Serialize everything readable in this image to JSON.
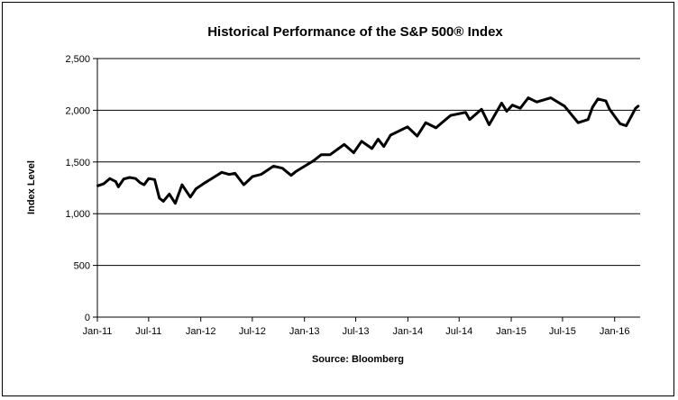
{
  "chart_data": {
    "type": "line",
    "title": "Historical Performance of the S&P 500® Index",
    "xlabel": "Source: Bloomberg",
    "ylabel": "Index Level",
    "ylim": [
      0,
      2500
    ],
    "yticks": [
      0,
      500,
      1000,
      1500,
      2000,
      2500
    ],
    "ytick_labels": [
      "0",
      "500",
      "1,000",
      "1,500",
      "2,000",
      "2,500"
    ],
    "xlim": [
      "2011-01-01",
      "2016-03-31"
    ],
    "xticks": [
      "2011-01-01",
      "2011-07-01",
      "2012-01-01",
      "2012-07-01",
      "2013-01-01",
      "2013-07-01",
      "2014-01-01",
      "2014-07-01",
      "2015-01-01",
      "2015-07-01",
      "2016-01-01"
    ],
    "xtick_labels": [
      "Jan-11",
      "Jul-11",
      "Jan-12",
      "Jul-12",
      "Jan-13",
      "Jul-13",
      "Jan-14",
      "Jul-14",
      "Jan-15",
      "Jul-15",
      "Jan-16"
    ],
    "grid": "horizontal",
    "legend": "none",
    "line_color": "#000000",
    "series": [
      {
        "x": [
          "2011-01-03",
          "2011-01-24",
          "2011-02-14",
          "2011-03-07",
          "2011-03-16",
          "2011-04-04",
          "2011-04-25",
          "2011-05-16",
          "2011-06-01",
          "2011-06-15",
          "2011-07-01",
          "2011-07-22",
          "2011-08-08",
          "2011-08-22",
          "2011-09-12",
          "2011-10-03",
          "2011-10-27",
          "2011-11-25",
          "2011-12-15",
          "2012-01-16",
          "2012-02-15",
          "2012-03-15",
          "2012-04-10",
          "2012-05-01",
          "2012-06-01",
          "2012-07-02",
          "2012-08-01",
          "2012-09-14",
          "2012-10-15",
          "2012-11-15",
          "2012-12-03",
          "2013-01-02",
          "2013-02-01",
          "2013-03-01",
          "2013-04-01",
          "2013-05-21",
          "2013-06-24",
          "2013-07-22",
          "2013-08-27",
          "2013-09-18",
          "2013-10-08",
          "2013-11-01",
          "2013-12-31",
          "2014-02-03",
          "2014-03-05",
          "2014-04-10",
          "2014-05-01",
          "2014-06-01",
          "2014-07-24",
          "2014-08-07",
          "2014-09-18",
          "2014-10-15",
          "2014-11-28",
          "2014-12-16",
          "2015-01-05",
          "2015-02-02",
          "2015-03-02",
          "2015-04-01",
          "2015-05-21",
          "2015-07-08",
          "2015-08-25",
          "2015-09-29",
          "2015-10-15",
          "2015-11-03",
          "2015-12-01",
          "2015-12-14",
          "2016-01-20",
          "2016-02-11",
          "2016-03-15",
          "2016-03-24"
        ],
        "values": [
          1270,
          1290,
          1340,
          1310,
          1260,
          1335,
          1350,
          1340,
          1300,
          1280,
          1340,
          1330,
          1150,
          1120,
          1190,
          1100,
          1280,
          1160,
          1240,
          1300,
          1350,
          1400,
          1380,
          1390,
          1280,
          1360,
          1380,
          1460,
          1440,
          1370,
          1410,
          1460,
          1510,
          1570,
          1570,
          1670,
          1590,
          1700,
          1630,
          1720,
          1650,
          1760,
          1840,
          1750,
          1880,
          1830,
          1880,
          1950,
          1980,
          1910,
          2010,
          1860,
          2070,
          1990,
          2050,
          2020,
          2120,
          2080,
          2120,
          2040,
          1880,
          1910,
          2030,
          2110,
          2090,
          2010,
          1870,
          1850,
          2020,
          2040
        ]
      }
    ]
  }
}
